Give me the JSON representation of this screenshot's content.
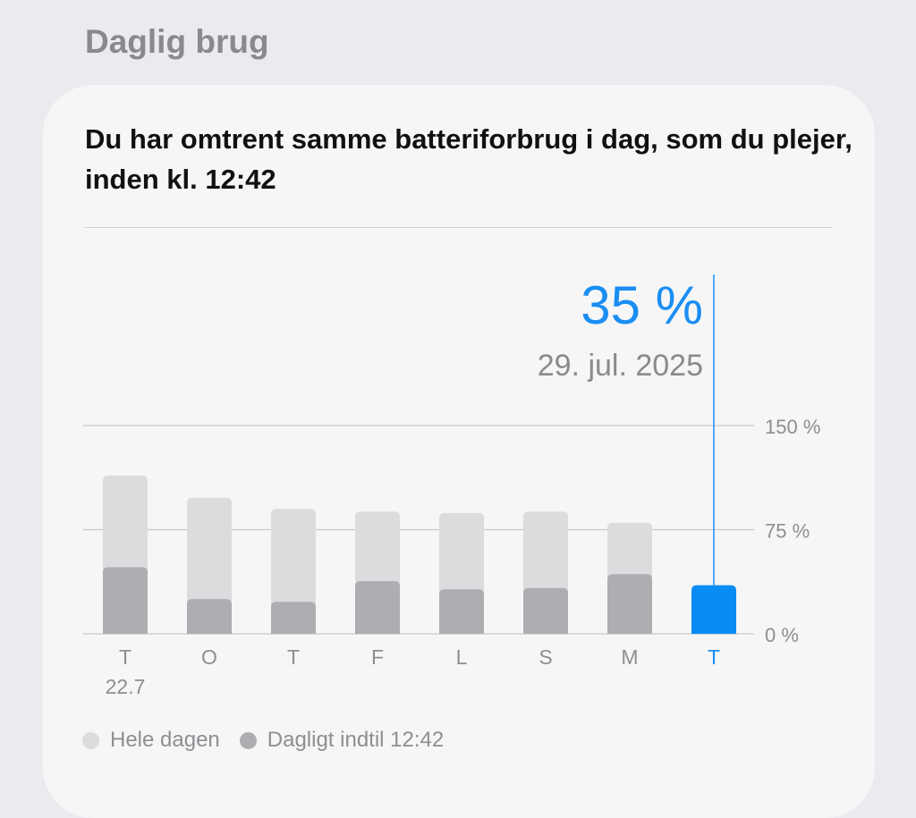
{
  "section": {
    "title": "Daglig brug"
  },
  "card": {
    "headline": "Du har omtrent samme batteriforbrug i dag, som du plejer, inden kl. 12:42"
  },
  "chart_data": {
    "type": "bar",
    "categories": [
      "T",
      "O",
      "T",
      "F",
      "L",
      "S",
      "M",
      "T"
    ],
    "first_category_sublabel": "22.7",
    "series": [
      {
        "name": "Hele dagen",
        "values": [
          114,
          98,
          90,
          88,
          87,
          88,
          80,
          null
        ]
      },
      {
        "name": "Dagligt indtil 12:42",
        "values": [
          48,
          25,
          23,
          38,
          32,
          33,
          43,
          35
        ]
      }
    ],
    "highlight": {
      "index": 7,
      "value_label": "35 %",
      "date_label": "29. jul. 2025"
    },
    "y_ticks": [
      {
        "value": 150,
        "label": "150 %"
      },
      {
        "value": 75,
        "label": "75 %"
      },
      {
        "value": 0,
        "label": "0 %"
      }
    ],
    "ylim": [
      0,
      150
    ],
    "grid": true,
    "legend_position": "bottom-left"
  },
  "colors": {
    "accent": "#1A8EF3",
    "bar_full_day": "#DCDCDE",
    "bar_until_now": "#ADADB2",
    "bar_today": "#0A8CF5",
    "gridline": "#CACACC",
    "axis_text": "#8E8E93",
    "date_text": "#8A8A8E"
  },
  "legend": {
    "full_day_label": "Hele dagen",
    "until_now_label": "Dagligt indtil 12:42"
  }
}
